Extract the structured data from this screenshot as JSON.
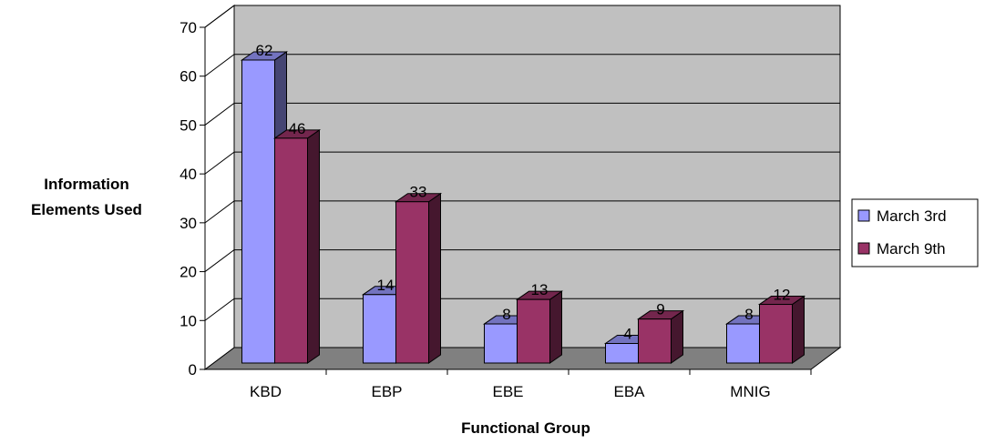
{
  "chart_data": {
    "type": "bar",
    "categories": [
      "KBD",
      "EBP",
      "EBE",
      "EBA",
      "MNIG"
    ],
    "series": [
      {
        "name": "March 3rd",
        "values": [
          62,
          14,
          8,
          4,
          8
        ],
        "color": "#9999FF"
      },
      {
        "name": "March 9th",
        "values": [
          46,
          33,
          13,
          9,
          12
        ],
        "color": "#993366"
      }
    ],
    "xlabel": "Functional Group",
    "ylabel": [
      "Information",
      "Elements Used"
    ],
    "ylim": [
      0,
      70
    ],
    "yticks": [
      0,
      10,
      20,
      30,
      40,
      50,
      60,
      70
    ],
    "grid": true,
    "legend": "right",
    "style": "3d-clustered-column",
    "colors": {
      "wall": "#C0C0C0",
      "floor": "#808080",
      "grid": "#000000"
    }
  }
}
